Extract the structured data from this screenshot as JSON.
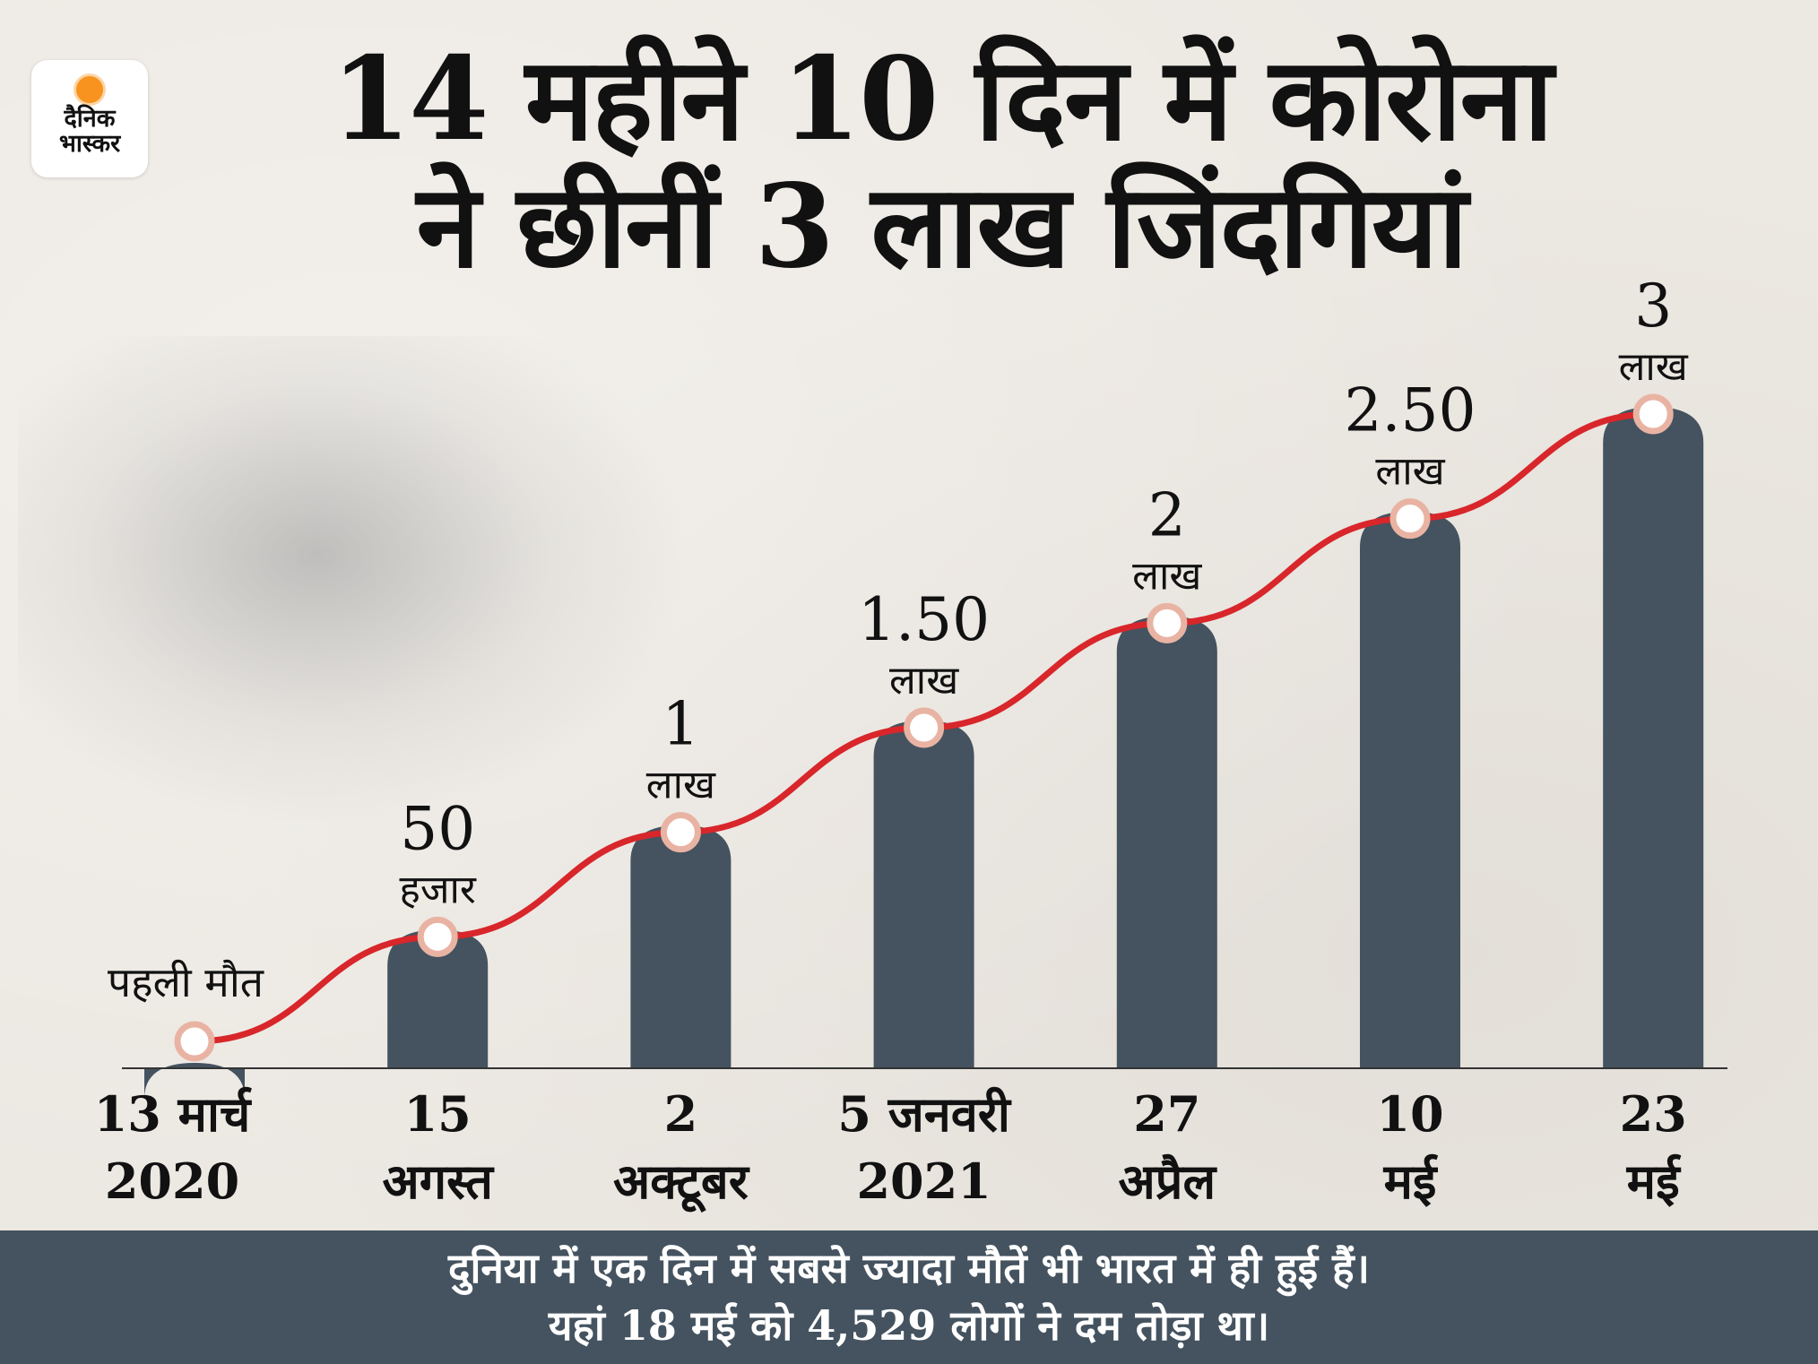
{
  "logo": {
    "line1": "दैनिक",
    "line2": "भास्कर"
  },
  "title": {
    "line1": "14 महीने 10 दिन में कोरोना",
    "line2": "ने छीनीं 3 लाख जिंदगियां"
  },
  "chart_data": {
    "type": "bar",
    "categories": [
      [
        "13 मार्च",
        "2020"
      ],
      [
        "15",
        "अगस्त"
      ],
      [
        "2",
        "अक्टूबर"
      ],
      [
        "5 जनवरी",
        "2021"
      ],
      [
        "27",
        "अप्रैल"
      ],
      [
        "10",
        "मई"
      ],
      [
        "23",
        "मई"
      ]
    ],
    "values": [
      0,
      50000,
      100000,
      150000,
      200000,
      250000,
      300000
    ],
    "data_labels": [
      [
        "पहली मौत",
        ""
      ],
      [
        "50",
        "हजार"
      ],
      [
        "1",
        "लाख"
      ],
      [
        "1.50",
        "लाख"
      ],
      [
        "2",
        "लाख"
      ],
      [
        "2.50",
        "लाख"
      ],
      [
        "3",
        "लाख"
      ]
    ],
    "line_overlay": true,
    "colors": {
      "bar": "#44535f",
      "line": "#d8262b",
      "marker_fill": "#ffffff",
      "marker_stroke": "#e9b3a3",
      "footer": "#44535f"
    }
  },
  "footer": {
    "line1": "दुनिया में एक दिन में सबसे ज्यादा मौतें भी भारत में ही हुई हैं।",
    "line2": "यहां 18 मई को 4,529 लोगों ने दम तोड़ा था।"
  }
}
